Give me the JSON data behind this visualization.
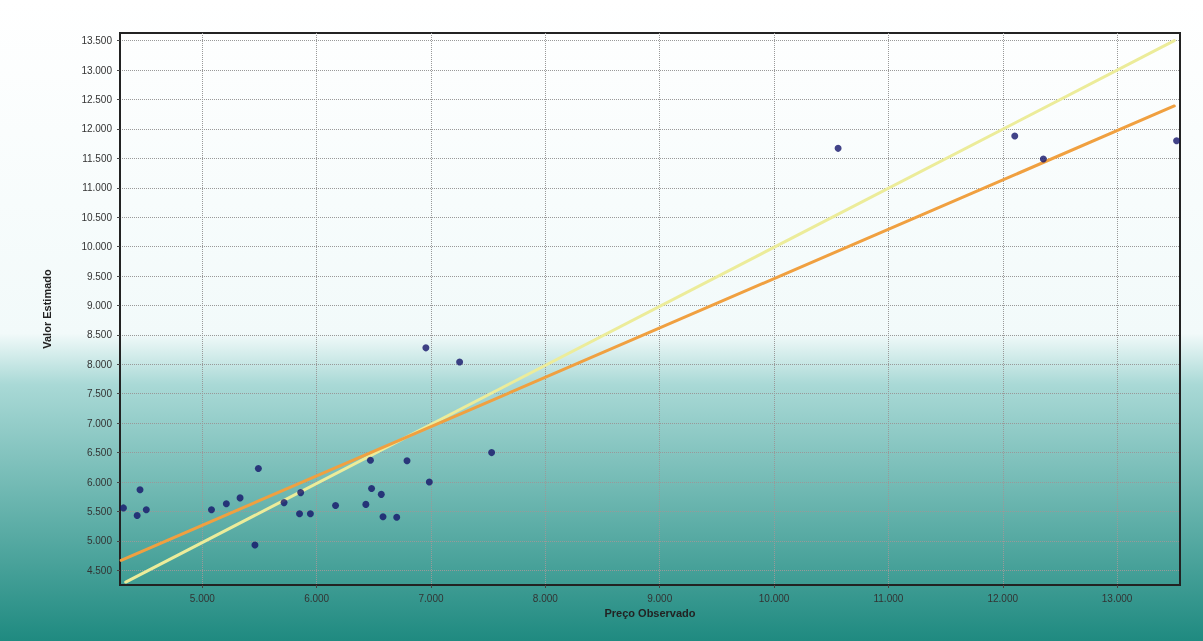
{
  "chart_data": {
    "type": "scatter",
    "xlabel": "Preço Observado",
    "ylabel": "Valor Estimado",
    "xlim": [
      4280,
      13550
    ],
    "ylim": [
      4250,
      13630
    ],
    "xticks": [
      {
        "value": 5000,
        "label": "5.000"
      },
      {
        "value": 6000,
        "label": "6.000"
      },
      {
        "value": 7000,
        "label": "7.000"
      },
      {
        "value": 8000,
        "label": "8.000"
      },
      {
        "value": 9000,
        "label": "9.000"
      },
      {
        "value": 10000,
        "label": "10.000"
      },
      {
        "value": 11000,
        "label": "11.000"
      },
      {
        "value": 12000,
        "label": "12.000"
      },
      {
        "value": 13000,
        "label": "13.000"
      }
    ],
    "yticks": [
      {
        "value": 4500,
        "label": "4.500"
      },
      {
        "value": 5000,
        "label": "5.000"
      },
      {
        "value": 5500,
        "label": "5.500"
      },
      {
        "value": 6000,
        "label": "6.000"
      },
      {
        "value": 6500,
        "label": "6.500"
      },
      {
        "value": 7000,
        "label": "7.000"
      },
      {
        "value": 7500,
        "label": "7.500"
      },
      {
        "value": 8000,
        "label": "8.000"
      },
      {
        "value": 8500,
        "label": "8.500"
      },
      {
        "value": 9000,
        "label": "9.000"
      },
      {
        "value": 9500,
        "label": "9.500"
      },
      {
        "value": 10000,
        "label": "10.000"
      },
      {
        "value": 10500,
        "label": "10.500"
      },
      {
        "value": 11000,
        "label": "11.000"
      },
      {
        "value": 11500,
        "label": "11.500"
      },
      {
        "value": 12000,
        "label": "12.000"
      },
      {
        "value": 12500,
        "label": "12.500"
      },
      {
        "value": 13000,
        "label": "13.000"
      },
      {
        "value": 13500,
        "label": "13.500"
      }
    ],
    "grid": true,
    "series": [
      {
        "type": "line",
        "color": "#ecec9a",
        "x": [
          4330,
          13500
        ],
        "values": [
          4300,
          13500
        ],
        "line_style": "solid",
        "marker": "none"
      },
      {
        "type": "line",
        "color": "#f0a040",
        "x": [
          4290,
          13500
        ],
        "values": [
          4670,
          12390
        ],
        "line_style": "solid",
        "marker": "none"
      },
      {
        "marker": "circle",
        "color": "#14146a",
        "x": [
          4310,
          4430,
          4455,
          4510,
          5080,
          5210,
          5330,
          5490,
          5460,
          5715,
          5860,
          5850,
          5945,
          6165,
          6430,
          6470,
          6480,
          6565,
          6580,
          6700,
          6790,
          6985,
          7530,
          6955,
          7250,
          10560,
          12105,
          12355,
          13520
        ],
        "values": [
          5560,
          5430,
          5870,
          5530,
          5530,
          5630,
          5730,
          6230,
          4930,
          5650,
          5820,
          5460,
          5460,
          5600,
          5620,
          6370,
          5890,
          5790,
          5410,
          5400,
          6360,
          6000,
          6500,
          8280,
          8040,
          11670,
          11880,
          11490,
          11800
        ]
      }
    ]
  }
}
